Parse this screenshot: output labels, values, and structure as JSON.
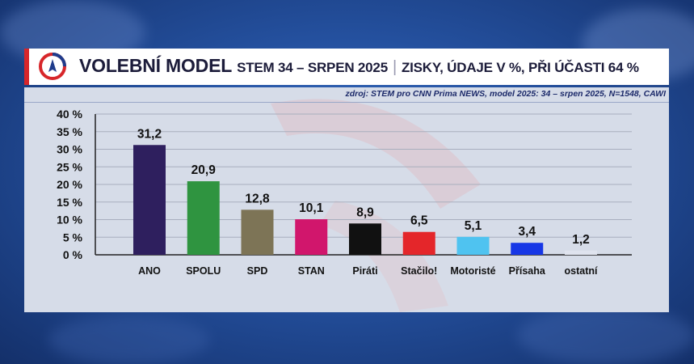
{
  "header": {
    "title": "VOLEBNÍ MODEL",
    "subtitle": "STEM 34 – SRPEN 2025",
    "separator": "|",
    "subtitle2": "ZISKY, ÚDAJE V %, PŘI ÚČASTI 64 %"
  },
  "source": "zdroj: STEM pro CNN Prima NEWS, model 2025: 34 – srpen 2025, N=1548, CAWI",
  "colors": {
    "accent_red": "#d7262a",
    "background_blue": "#24509e",
    "panel": "#d6dce8"
  },
  "chart_data": {
    "type": "bar",
    "title": "VOLEBNÍ MODEL",
    "xlabel": "",
    "ylabel": "",
    "ylim": [
      0,
      40
    ],
    "yticks": [
      "0 %",
      "5 %",
      "10 %",
      "15 %",
      "20 %",
      "25 %",
      "30 %",
      "35 %",
      "40 %"
    ],
    "grid": true,
    "categories": [
      "ANO",
      "SPOLU",
      "SPD",
      "STAN",
      "Piráti",
      "Stačilo!",
      "Motoristé",
      "Přísaha",
      "ostatní"
    ],
    "values": [
      31.2,
      20.9,
      12.8,
      10.1,
      8.9,
      6.5,
      5.1,
      3.4,
      1.2
    ],
    "value_labels": [
      "31,2",
      "20,9",
      "12,8",
      "10,1",
      "8,9",
      "6,5",
      "5,1",
      "3,4",
      "1,2"
    ],
    "colors": [
      "#2e1f5e",
      "#2f9440",
      "#7d7456",
      "#d1166c",
      "#111111",
      "#e4262a",
      "#4fc3f0",
      "#1737e6",
      "#dfe3ee"
    ]
  }
}
